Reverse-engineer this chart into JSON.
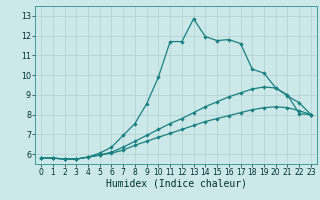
{
  "title": "",
  "xlabel": "Humidex (Indice chaleur)",
  "bg_color": "#cce8e8",
  "grid_color": "#b0d0d0",
  "line_color": "#1a8080",
  "xlim": [
    -0.5,
    23.5
  ],
  "ylim": [
    5.5,
    13.5
  ],
  "xticks": [
    0,
    1,
    2,
    3,
    4,
    5,
    6,
    7,
    8,
    9,
    10,
    11,
    12,
    13,
    14,
    15,
    16,
    17,
    18,
    19,
    20,
    21,
    22,
    23
  ],
  "yticks": [
    6,
    7,
    8,
    9,
    10,
    11,
    12,
    13
  ],
  "curve1_x": [
    0,
    1,
    2,
    3,
    4,
    5,
    6,
    7,
    8,
    9,
    10,
    11,
    12,
    13,
    14,
    15,
    16,
    17,
    18,
    19,
    20,
    21,
    22,
    23
  ],
  "curve1_y": [
    5.8,
    5.8,
    5.75,
    5.75,
    5.85,
    6.05,
    6.35,
    6.95,
    7.55,
    8.55,
    9.9,
    11.7,
    11.7,
    12.85,
    11.95,
    11.75,
    11.8,
    11.6,
    10.3,
    10.1,
    9.35,
    9.0,
    8.05,
    8.0
  ],
  "curve2_x": [
    0,
    1,
    2,
    3,
    4,
    5,
    6,
    7,
    8,
    9,
    10,
    11,
    12,
    13,
    14,
    15,
    16,
    17,
    18,
    19,
    20,
    21,
    22,
    23
  ],
  "curve2_y": [
    5.8,
    5.8,
    5.75,
    5.75,
    5.85,
    5.95,
    6.1,
    6.35,
    6.65,
    6.95,
    7.25,
    7.55,
    7.8,
    8.1,
    8.4,
    8.65,
    8.9,
    9.1,
    9.3,
    9.4,
    9.35,
    8.95,
    8.6,
    8.0
  ],
  "curve3_x": [
    0,
    1,
    2,
    3,
    4,
    5,
    6,
    7,
    8,
    9,
    10,
    11,
    12,
    13,
    14,
    15,
    16,
    17,
    18,
    19,
    20,
    21,
    22,
    23
  ],
  "curve3_y": [
    5.8,
    5.8,
    5.75,
    5.75,
    5.85,
    5.95,
    6.05,
    6.2,
    6.45,
    6.65,
    6.85,
    7.05,
    7.25,
    7.45,
    7.65,
    7.8,
    7.95,
    8.1,
    8.25,
    8.35,
    8.4,
    8.35,
    8.2,
    8.0
  ],
  "marker_size": 2.2,
  "line_width": 0.9,
  "xlabel_fontsize": 7,
  "tick_fontsize": 5.5
}
